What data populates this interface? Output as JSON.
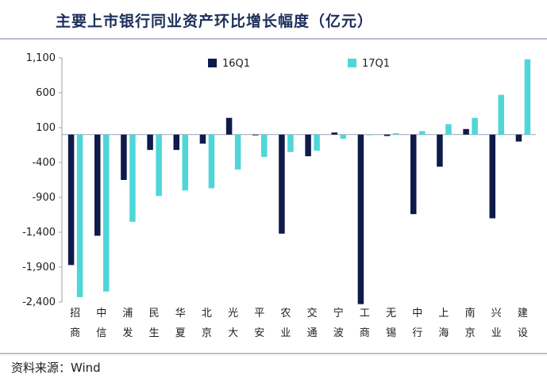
{
  "title": "主要上市银行同业资产环比增长幅度（亿元）",
  "source": "资料来源：Wind",
  "colors": {
    "series1": "#0e1a4a",
    "series2": "#4fd6d9",
    "axis": "#9aa3ad"
  },
  "chart_data": {
    "type": "bar",
    "title": "主要上市银行同业资产环比增长幅度（亿元）",
    "ylabel": "",
    "xlabel": "",
    "ylim": [
      -2400,
      1100
    ],
    "yticks": [
      1100,
      600,
      100,
      -400,
      -900,
      -1400,
      -1900,
      -2400
    ],
    "ytick_labels": [
      "1,100",
      "600",
      "100",
      "-400",
      "-900",
      "-1,400",
      "-1,900",
      "-2,400"
    ],
    "grid": false,
    "legend": "top",
    "categories": [
      "招商",
      "中信",
      "浦发",
      "民生",
      "华夏",
      "北京",
      "光大",
      "平安",
      "农业",
      "交通",
      "宁波",
      "工商",
      "无锡",
      "中行",
      "上海",
      "南京",
      "兴业",
      "建设"
    ],
    "series": [
      {
        "name": "16Q1",
        "values": [
          -1870,
          -1450,
          -650,
          -220,
          -220,
          -130,
          240,
          -10,
          -1420,
          -310,
          30,
          -2430,
          -20,
          -1140,
          -460,
          80,
          -1200,
          -100
        ]
      },
      {
        "name": "17Q1",
        "values": [
          -2330,
          -2250,
          -1250,
          -880,
          -800,
          -770,
          -500,
          -320,
          -250,
          -230,
          -60,
          0,
          20,
          50,
          150,
          240,
          570,
          1080
        ]
      }
    ]
  }
}
